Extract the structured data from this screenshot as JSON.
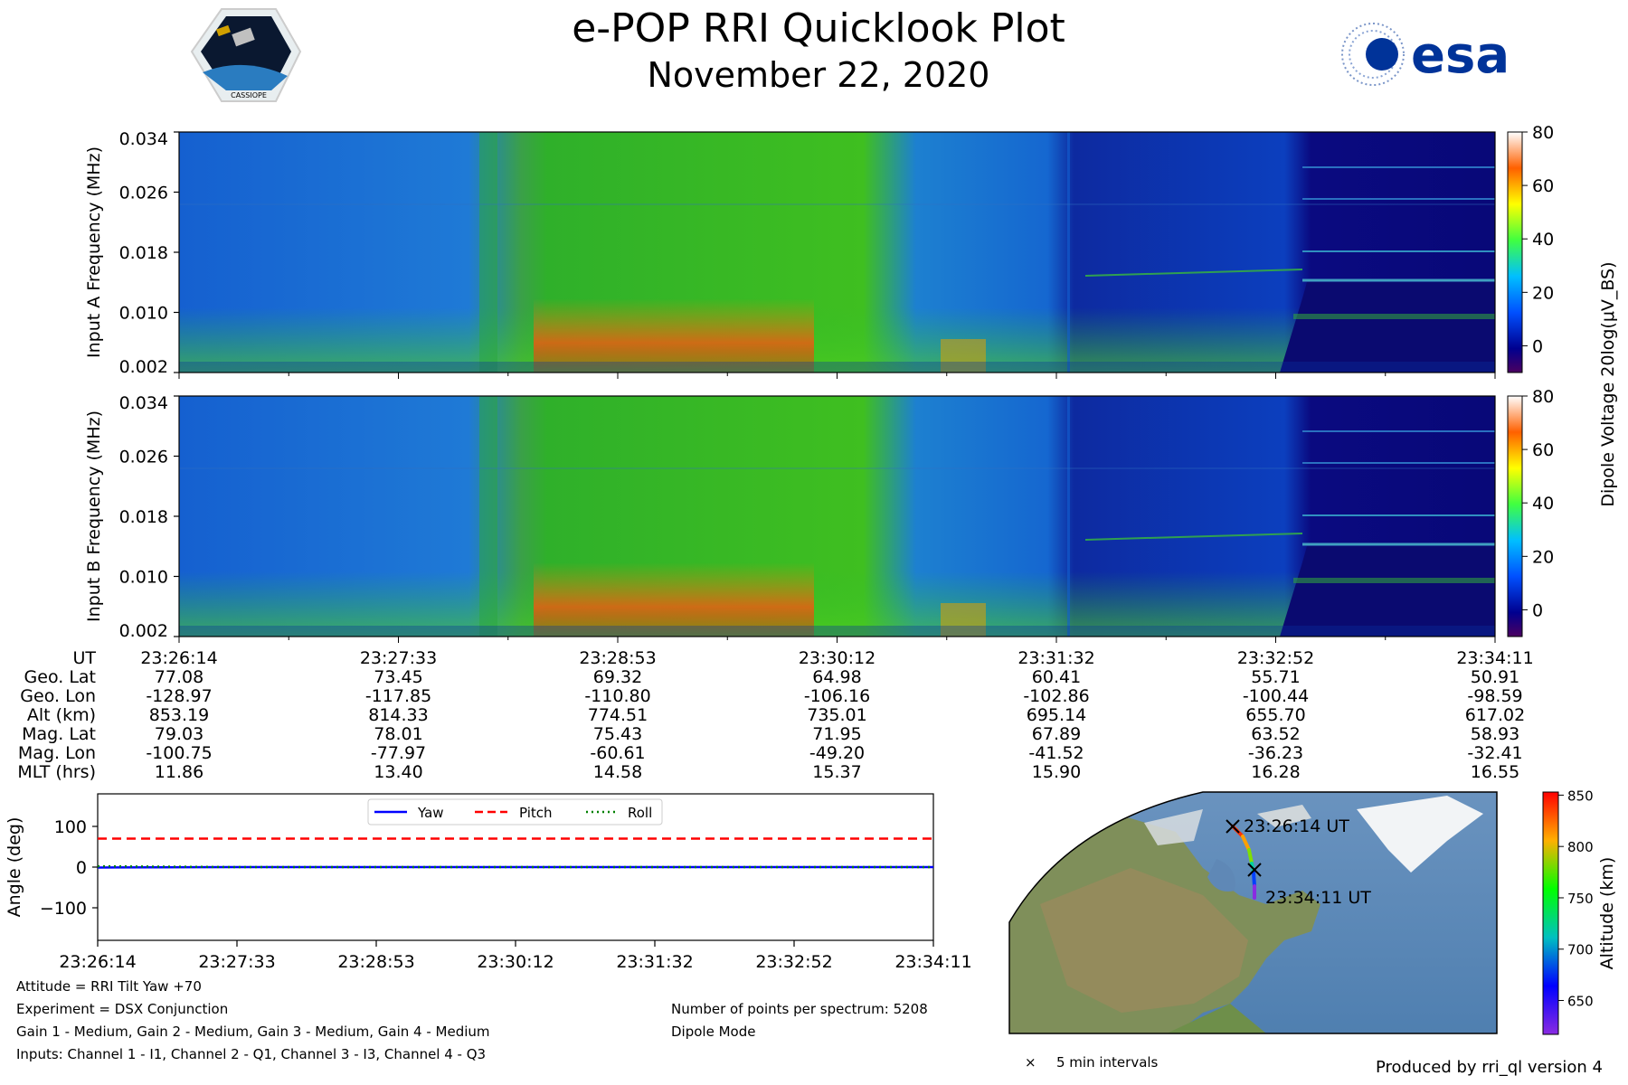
{
  "figure": {
    "title": "e-POP RRI Quicklook Plot",
    "subtitle": "November 22, 2020",
    "logo_left_text": "CASSIOPE",
    "logo_right_text": "esa",
    "produced_by": "Produced by rri_ql version 4"
  },
  "colors": {
    "yaw": "#0000ff",
    "pitch": "#ff0000",
    "roll": "#008000",
    "esa_blue": "#003399"
  },
  "chart_data": [
    {
      "type": "heatmap",
      "id": "input_a",
      "ylabel": "Input A Frequency (MHz)",
      "yticks": [
        "0.002",
        "0.010",
        "0.018",
        "0.026",
        "0.034"
      ],
      "ylim": [
        0.002,
        0.034
      ],
      "colorbar": {
        "label": "Dipole Voltage 20log(μV_BS)",
        "ticks": [
          0,
          20,
          40,
          60,
          80
        ],
        "range": [
          -10,
          80
        ]
      }
    },
    {
      "type": "heatmap",
      "id": "input_b",
      "ylabel": "Input B Frequency (MHz)",
      "yticks": [
        "0.002",
        "0.010",
        "0.018",
        "0.026",
        "0.034"
      ],
      "ylim": [
        0.002,
        0.034
      ],
      "colorbar": {
        "label": "Dipole Voltage 20log(μV_BS)",
        "ticks": [
          0,
          20,
          40,
          60,
          80
        ],
        "range": [
          -10,
          80
        ]
      }
    },
    {
      "type": "table",
      "id": "ephemeris",
      "row_labels": [
        "UT",
        "Geo. Lat",
        "Geo. Lon",
        "Alt (km)",
        "Mag. Lat",
        "Mag. Lon",
        "MLT (hrs)"
      ],
      "columns": [
        [
          "23:26:14",
          "77.08",
          "-128.97",
          "853.19",
          "79.03",
          "-100.75",
          "11.86"
        ],
        [
          "23:27:33",
          "73.45",
          "-117.85",
          "814.33",
          "78.01",
          "-77.97",
          "13.40"
        ],
        [
          "23:28:53",
          "69.32",
          "-110.80",
          "774.51",
          "75.43",
          "-60.61",
          "14.58"
        ],
        [
          "23:30:12",
          "64.98",
          "-106.16",
          "735.01",
          "71.95",
          "-49.20",
          "15.37"
        ],
        [
          "23:31:32",
          "60.41",
          "-102.86",
          "695.14",
          "67.89",
          "-41.52",
          "15.90"
        ],
        [
          "23:32:52",
          "55.71",
          "-100.44",
          "655.70",
          "63.52",
          "-36.23",
          "16.28"
        ],
        [
          "23:34:11",
          "50.91",
          "-98.59",
          "617.02",
          "58.93",
          "-32.41",
          "16.55"
        ]
      ]
    },
    {
      "type": "line",
      "id": "attitude",
      "ylabel": "Angle (deg)",
      "ylim": [
        -180,
        180
      ],
      "yticks": [
        -100,
        0,
        100
      ],
      "yticklabels": [
        "−100",
        "0",
        "100"
      ],
      "xticks": [
        "23:26:14",
        "23:27:33",
        "23:28:53",
        "23:30:12",
        "23:31:32",
        "23:32:52",
        "23:34:11"
      ],
      "x": [
        0,
        1,
        2,
        3,
        4,
        5,
        6
      ],
      "series": [
        {
          "name": "Yaw",
          "values": [
            -1,
            0,
            0,
            0,
            0,
            0,
            0
          ]
        },
        {
          "name": "Pitch",
          "values": [
            70,
            70,
            70,
            70,
            70,
            70,
            70
          ]
        },
        {
          "name": "Roll",
          "values": [
            2,
            0,
            0,
            0,
            0,
            0,
            0
          ]
        }
      ]
    },
    {
      "type": "scatter",
      "id": "track_map",
      "start_label": "23:26:14 UT",
      "end_label": "23:34:11 UT",
      "legend": "5 min intervals",
      "colorbar": {
        "label": "Altitude (km)",
        "ticks": [
          650,
          700,
          750,
          800,
          850
        ],
        "range": [
          617,
          853
        ]
      }
    }
  ],
  "info": {
    "attitude": "Attitude = RRI Tilt Yaw +70",
    "experiment": "Experiment = DSX Conjunction",
    "gains": "Gain 1 - Medium, Gain 2 - Medium, Gain 3 - Medium, Gain 4 - Medium",
    "inputs": "Inputs: Channel 1 - I1, Channel 2 - Q1, Channel 3 - I3, Channel 4 - Q3",
    "points": "Number of points per spectrum: 5208",
    "mode": "Dipole Mode"
  }
}
